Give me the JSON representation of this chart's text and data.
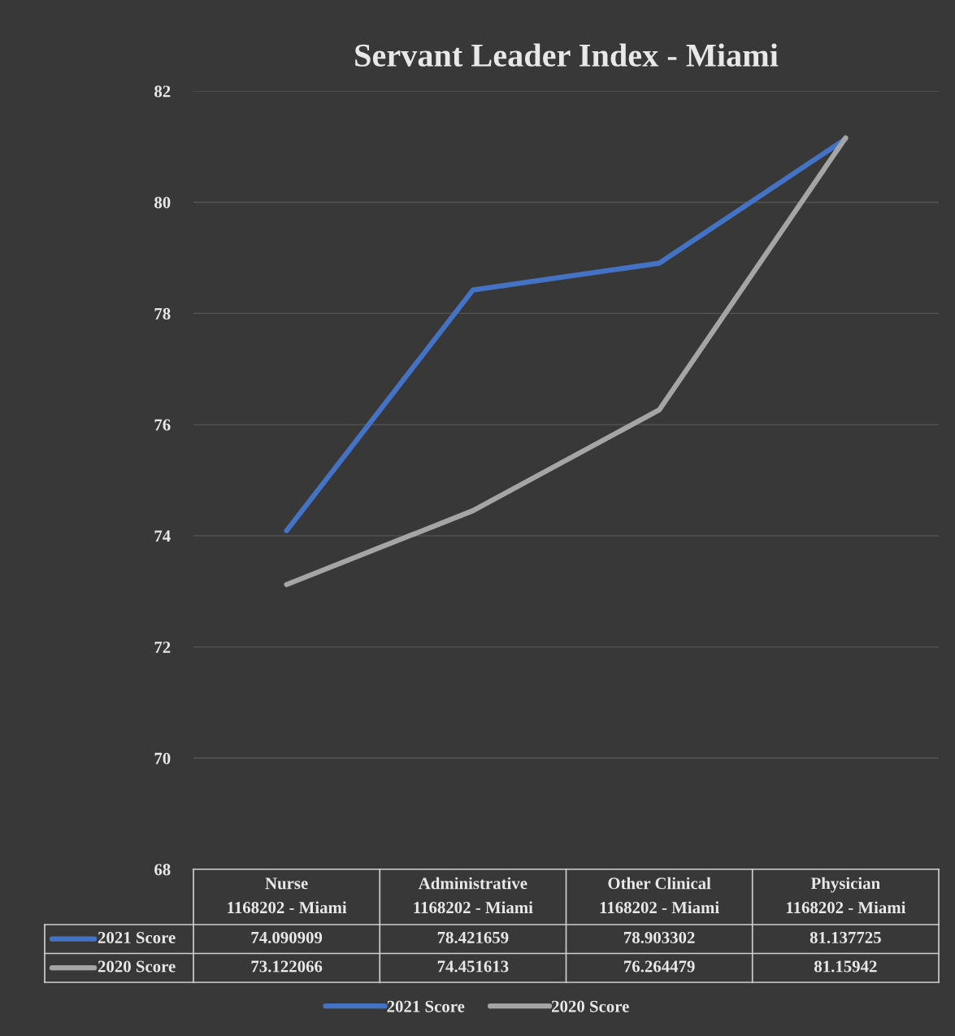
{
  "chart_data": {
    "type": "line",
    "title": "Servant Leader Index - Miami",
    "categories": [
      "Nurse\n1168202 - Miami",
      "Administrative\n1168202 - Miami",
      "Other Clinical\n1168202 - Miami",
      "Physician\n1168202 - Miami"
    ],
    "series": [
      {
        "name": "2021 Score",
        "color": "#4472c4",
        "values": [
          74.090909,
          78.421659,
          78.903302,
          81.137725
        ]
      },
      {
        "name": "2020 Score",
        "color": "#a5a5a5",
        "values": [
          73.122066,
          74.451613,
          76.264479,
          81.15942
        ]
      }
    ],
    "ylim": [
      68,
      82
    ],
    "yticks": [
      68,
      70,
      72,
      74,
      76,
      78,
      80,
      82
    ],
    "grid": "y",
    "legend": "bottom",
    "data_labels": true,
    "marker": "none",
    "line_style": "solid"
  }
}
